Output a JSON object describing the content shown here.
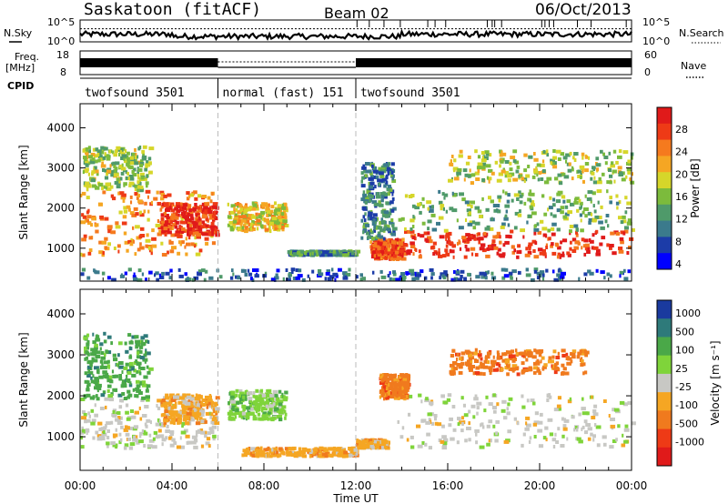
{
  "header": {
    "title": "Saskatoon (fitACF)",
    "beam": "Beam 02",
    "date": "06/Oct/2013"
  },
  "strips": {
    "nsky_label": "N.Sky",
    "nsearch_label": "N.Search",
    "noise_ticks": [
      "10^5",
      "10^0"
    ],
    "freq_label_1": "Freq.",
    "freq_label_2": "[MHz]",
    "freq_ticks": [
      "18",
      "8"
    ],
    "nave_label": "Nave",
    "nave_ticks": [
      "60",
      "0"
    ],
    "cpid_label": "CPID",
    "cpid_segments": [
      {
        "label": "twofsound 3501",
        "start_h": 0,
        "end_h": 6
      },
      {
        "label": "normal (fast) 151",
        "start_h": 6,
        "end_h": 12
      },
      {
        "label": "twofsound 3501",
        "start_h": 12,
        "end_h": 24
      }
    ]
  },
  "chart_data": [
    {
      "type": "heatmap",
      "panel": "Power",
      "ylabel": "Slant Range [km]",
      "yticks": [
        1000,
        2000,
        3000,
        4000
      ],
      "ylim": [
        180,
        4600
      ],
      "xlim": [
        0,
        24
      ],
      "colorbar": {
        "label": "Power [dB]",
        "ticks": [
          "28",
          "24",
          "20",
          "16",
          "12",
          "8",
          "4"
        ],
        "range": [
          0,
          30
        ],
        "colors": [
          "#0000ff",
          "#1c3ca8",
          "#3b7a8c",
          "#4f9a6a",
          "#7cbb3c",
          "#d6d62a",
          "#f5a623",
          "#f57a1e",
          "#ee3a16",
          "#e01a1a"
        ]
      },
      "regions": [
        {
          "t": [
            0,
            5.9
          ],
          "r": [
            800,
            2400
          ],
          "v": 22
        },
        {
          "t": [
            0.1,
            3.0
          ],
          "r": [
            2400,
            3500
          ],
          "v": 14
        },
        {
          "t": [
            3.5,
            5.9
          ],
          "r": [
            1300,
            2100
          ],
          "v": 26
        },
        {
          "t": [
            6.4,
            8.9
          ],
          "r": [
            1400,
            2100
          ],
          "v": 18
        },
        {
          "t": [
            9.0,
            12.0
          ],
          "r": [
            800,
            900
          ],
          "v": 10
        },
        {
          "t": [
            12.6,
            14.0
          ],
          "r": [
            700,
            1200
          ],
          "v": 25
        },
        {
          "t": [
            12.2,
            13.6
          ],
          "r": [
            1200,
            3100
          ],
          "v": 8
        },
        {
          "t": [
            13.8,
            24
          ],
          "r": [
            750,
            1400
          ],
          "v": 27
        },
        {
          "t": [
            13.8,
            24
          ],
          "r": [
            1400,
            2400
          ],
          "v": 12
        },
        {
          "t": [
            16.0,
            24
          ],
          "r": [
            2600,
            3400
          ],
          "v": 15
        },
        {
          "t": [
            0,
            24
          ],
          "r": [
            180,
            450
          ],
          "v": 6
        }
      ]
    },
    {
      "type": "heatmap",
      "panel": "Velocity",
      "ylabel": "Slant Range [km]",
      "yticks": [
        1000,
        2000,
        3000,
        4000
      ],
      "ylim": [
        180,
        4600
      ],
      "xlim": [
        0,
        24
      ],
      "xticks": [
        "00:00",
        "04:00",
        "08:00",
        "12:00",
        "16:00",
        "20:00",
        "00:00"
      ],
      "xlabel": "Time UT",
      "colorbar": {
        "label": "Velocity [m s⁻¹]",
        "ticks": [
          "1000",
          "500",
          "100",
          "25",
          "-25",
          "-100",
          "-500",
          "-1000"
        ],
        "colors": [
          "#1a3a9e",
          "#2e7a7a",
          "#4aa848",
          "#7fd43a",
          "#c8c8c4",
          "#f5a623",
          "#f07a1e",
          "#ee3a16",
          "#e01a1a"
        ]
      },
      "regions": [
        {
          "t": [
            0,
            5.9
          ],
          "r": [
            700,
            1900
          ],
          "v": "-25"
        },
        {
          "t": [
            0.1,
            3.0
          ],
          "r": [
            1900,
            3500
          ],
          "v": "100"
        },
        {
          "t": [
            3.5,
            5.9
          ],
          "r": [
            1300,
            2000
          ],
          "v": "-100"
        },
        {
          "t": [
            6.4,
            8.9
          ],
          "r": [
            1400,
            2100
          ],
          "v": "25"
        },
        {
          "t": [
            7.0,
            12.0
          ],
          "r": [
            500,
            700
          ],
          "v": "-100"
        },
        {
          "t": [
            12.0,
            13.3
          ],
          "r": [
            700,
            900
          ],
          "v": "-100"
        },
        {
          "t": [
            13.8,
            24
          ],
          "r": [
            700,
            2000
          ],
          "v": "-25"
        },
        {
          "t": [
            13.0,
            14.2
          ],
          "r": [
            1900,
            2500
          ],
          "v": "-500"
        },
        {
          "t": [
            16.0,
            22.0
          ],
          "r": [
            2500,
            3100
          ],
          "v": "-500"
        }
      ]
    }
  ],
  "noise": {
    "nsky_level": 0.35,
    "nsearch_level": 0.6
  },
  "freq": {
    "mhz": 11
  },
  "nave": {
    "segments": [
      {
        "start_h": 0,
        "end_h": 6,
        "value": 30
      },
      {
        "start_h": 6,
        "end_h": 12,
        "value": 4
      },
      {
        "start_h": 12,
        "end_h": 24,
        "value": 30
      }
    ]
  }
}
